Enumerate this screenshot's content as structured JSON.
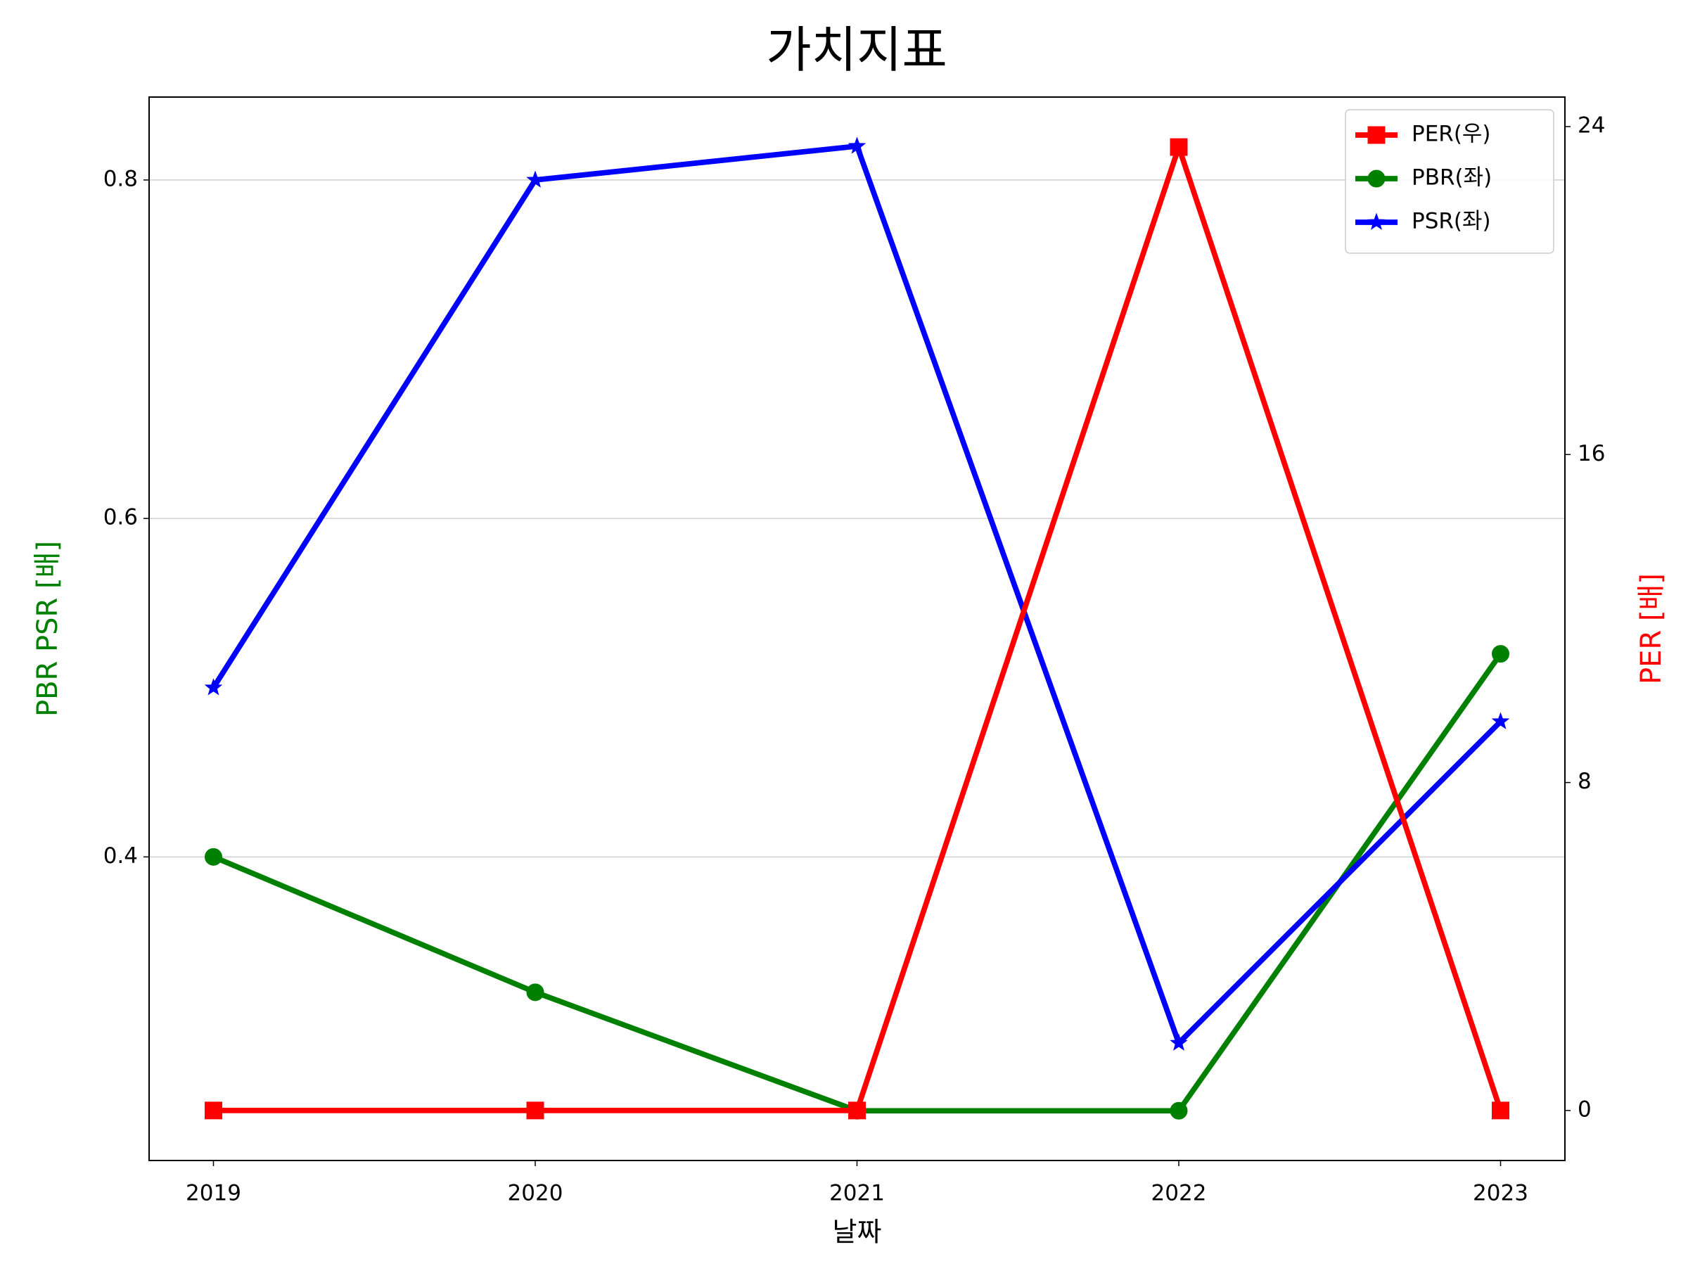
{
  "chart_data": {
    "type": "line",
    "title": "가치지표",
    "x_label": "날짜",
    "y_label": "PBR PSR [배]",
    "y2_label": "PER [배]",
    "y_label_color": "green",
    "y2_label_color": "red",
    "x": [
      2019,
      2020,
      2021,
      2022,
      2023
    ],
    "xlim": [
      2018.8,
      2023.2
    ],
    "xticks": [
      2019,
      2020,
      2021,
      2022,
      2023
    ],
    "ylim": [
      0.2206,
      0.849
    ],
    "yticks": [
      0.4,
      0.6,
      0.8
    ],
    "y2lim": [
      -1.22,
      24.72
    ],
    "y2ticks": [
      0,
      8,
      16,
      24
    ],
    "grid": true,
    "legend": "upper right",
    "series": [
      {
        "name": "PER(우)",
        "color": "red",
        "marker": "square",
        "axis": "y2",
        "values": [
          0,
          0,
          0,
          23.5,
          0
        ]
      },
      {
        "name": "PBR(좌)",
        "color": "green",
        "marker": "circle",
        "values": [
          0.4,
          0.32,
          0.25,
          0.25,
          0.52
        ]
      },
      {
        "name": "PSR(좌)",
        "color": "blue",
        "marker": "star",
        "values": [
          0.5,
          0.8,
          0.82,
          0.29,
          0.48
        ]
      }
    ]
  }
}
